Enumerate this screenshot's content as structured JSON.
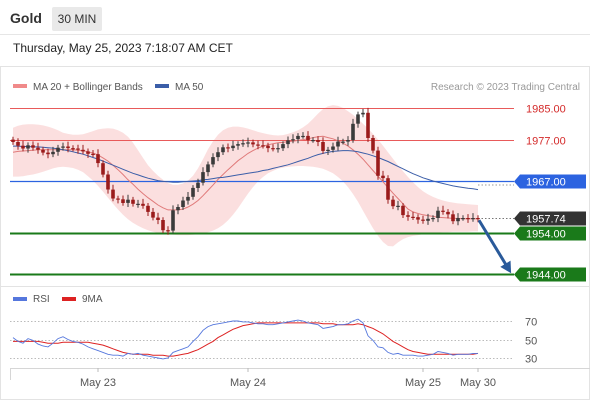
{
  "header": {
    "instrument": "Gold",
    "timeframe": "30 MIN",
    "datetime": "Thursday, May 25, 2023 7:18:07 AM CET"
  },
  "colors": {
    "bull": "#3a3a3a",
    "bear": "#9a1b1b",
    "bollinger_fill": "#f9c9c9",
    "ma20": "#e07a7a",
    "ma50": "#3b5ea8",
    "resistance": "#e85a5a",
    "pivot": "#2c63e0",
    "support": "#1a7a1a",
    "current": "#333333",
    "arrow": "#2a5a9a",
    "rsi": "#5577dd",
    "rsi_ma": "#dd2222"
  },
  "chart_data": [
    {
      "type": "candlestick",
      "legend": [
        {
          "label": "MA 20 + Bollinger Bands",
          "color": "#f08a8a"
        },
        {
          "label": "MA 50",
          "color": "#3b5ea8"
        }
      ],
      "legend_placement": "top-left",
      "watermark": "Research © 2023 Trading Central",
      "ylim": [
        1940,
        1990
      ],
      "levels": [
        {
          "label": "1985.00",
          "value": 1985.0,
          "role": "resistance"
        },
        {
          "label": "1977.00",
          "value": 1977.0,
          "role": "resistance"
        },
        {
          "label": "1967.00",
          "value": 1967.0,
          "role": "pivot"
        },
        {
          "label": "1957.74",
          "value": 1957.74,
          "role": "current"
        },
        {
          "label": "1954.00",
          "value": 1954.0,
          "role": "support"
        },
        {
          "label": "1944.00",
          "value": 1944.0,
          "role": "support"
        }
      ],
      "close": [
        1976.5,
        1975.6,
        1974.9,
        1975.7,
        1975.1,
        1974.6,
        1973.9,
        1973.5,
        1974.1,
        1975.1,
        1975.4,
        1975.0,
        1974.9,
        1974.6,
        1974.2,
        1973.6,
        1973.5,
        1971.3,
        1968.5,
        1964.8,
        1962.6,
        1962.4,
        1961.5,
        1962.3,
        1961.3,
        1961.3,
        1960.8,
        1959.3,
        1957.9,
        1957.3,
        1954.8,
        1954.7,
        1959.7,
        1960.5,
        1962.1,
        1963.0,
        1965.2,
        1966.5,
        1969.1,
        1971.0,
        1972.8,
        1974.0,
        1975.2,
        1975.0,
        1975.6,
        1976.0,
        1976.2,
        1976.4,
        1975.9,
        1975.7,
        1975.6,
        1975.0,
        1974.9,
        1975.0,
        1976.0,
        1976.9,
        1977.2,
        1978.0,
        1978.0,
        1977.0,
        1977.0,
        1976.5,
        1974.3,
        1974.6,
        1975.4,
        1976.6,
        1976.6,
        1977.0,
        1981.0,
        1983.3,
        1983.7,
        1977.5,
        1974.4,
        1968.2,
        1967.6,
        1962.3,
        1960.7,
        1960.8,
        1958.5,
        1958.1,
        1958.0,
        1957.4,
        1957.1,
        1957.6,
        1957.8,
        1959.6,
        1959.3,
        1958.7,
        1957.0,
        1957.8,
        1957.8,
        1957.6,
        1957.8,
        1957.74
      ],
      "ma20": [
        1974.0,
        1974.2,
        1974.3,
        1974.4,
        1974.5,
        1974.6,
        1974.6,
        1974.6,
        1974.6,
        1974.6,
        1974.6,
        1974.6,
        1974.6,
        1974.5,
        1974.4,
        1974.1,
        1973.8,
        1973.3,
        1972.6,
        1971.8,
        1970.8,
        1969.7,
        1968.5,
        1967.2,
        1966.1,
        1964.9,
        1963.8,
        1962.8,
        1961.9,
        1961.0,
        1960.3,
        1959.8,
        1959.8,
        1959.8,
        1960.0,
        1960.5,
        1961.2,
        1962.1,
        1963.3,
        1964.6,
        1965.9,
        1967.3,
        1968.5,
        1969.7,
        1970.8,
        1971.9,
        1972.8,
        1973.7,
        1974.4,
        1975.0,
        1975.5,
        1975.8,
        1976.1,
        1976.3,
        1976.4,
        1976.6,
        1976.7,
        1976.9,
        1977.1,
        1977.3,
        1977.6,
        1977.8,
        1977.9,
        1977.6,
        1977.3,
        1976.8,
        1976.2,
        1975.5,
        1974.6,
        1973.5,
        1972.3,
        1970.9,
        1969.5,
        1968.1,
        1966.7,
        1965.3,
        1963.9,
        1962.6,
        1961.3,
        1960.0,
        1959.3,
        1958.9,
        1958.6,
        1958.4,
        1958.2,
        1958.0,
        1957.9,
        1957.8,
        1957.7,
        1957.7,
        1957.6,
        1957.6,
        1957.6,
        1957.6
      ],
      "ma50": [
        1975.5,
        1975.5,
        1975.4,
        1975.4,
        1975.3,
        1975.3,
        1975.2,
        1975.1,
        1975.0,
        1974.8,
        1974.6,
        1974.4,
        1974.1,
        1973.8,
        1973.5,
        1973.1,
        1972.7,
        1972.3,
        1971.8,
        1971.3,
        1970.8,
        1970.3,
        1969.8,
        1969.3,
        1968.8,
        1968.4,
        1968.0,
        1967.6,
        1967.3,
        1967.0,
        1966.8,
        1966.7,
        1966.6,
        1966.6,
        1966.7,
        1966.8,
        1966.9,
        1967.0,
        1967.2,
        1967.3,
        1967.5,
        1967.7,
        1967.8,
        1968.0,
        1968.2,
        1968.4,
        1968.6,
        1968.8,
        1969.0,
        1969.2,
        1969.5,
        1969.7,
        1970.0,
        1970.3,
        1970.6,
        1970.9,
        1971.3,
        1971.7,
        1972.1,
        1972.5,
        1973.0,
        1973.4,
        1973.7,
        1974.0,
        1974.2,
        1974.3,
        1974.4,
        1974.4,
        1974.3,
        1974.1,
        1973.8,
        1973.5,
        1973.1,
        1972.7,
        1972.2,
        1971.7,
        1971.1,
        1970.5,
        1969.9,
        1969.3,
        1968.7,
        1968.2,
        1967.7,
        1967.3,
        1966.9,
        1966.6,
        1966.3,
        1966.0,
        1965.7,
        1965.5,
        1965.3,
        1965.1,
        1965.0,
        1964.8
      ],
      "bollinger_upper": [
        1980.0,
        1980.5,
        1980.8,
        1980.9,
        1980.9,
        1980.8,
        1980.6,
        1980.3,
        1979.9,
        1979.4,
        1978.8,
        1978.5,
        1978.3,
        1978.3,
        1978.4,
        1978.8,
        1979.2,
        1979.6,
        1979.8,
        1979.9,
        1979.8,
        1979.4,
        1978.8,
        1977.8,
        1976.3,
        1974.5,
        1972.6,
        1970.8,
        1969.4,
        1968.2,
        1967.2,
        1966.4,
        1966.0,
        1966.0,
        1966.3,
        1967.0,
        1968.2,
        1970.0,
        1972.3,
        1974.7,
        1976.7,
        1978.3,
        1979.4,
        1980.0,
        1980.3,
        1980.3,
        1980.1,
        1979.8,
        1979.4,
        1979.0,
        1978.7,
        1978.4,
        1978.2,
        1978.1,
        1978.2,
        1978.5,
        1978.9,
        1979.4,
        1980.1,
        1981.0,
        1982.2,
        1983.5,
        1984.6,
        1985.3,
        1985.6,
        1985.4,
        1984.9,
        1984.1,
        1983.2,
        1982.1,
        1981.0,
        1979.8,
        1978.5,
        1977.1,
        1975.6,
        1974.0,
        1972.4,
        1970.8,
        1969.3,
        1967.9,
        1966.6,
        1965.4,
        1964.4,
        1963.6,
        1963.0,
        1962.5,
        1962.1,
        1961.8,
        1961.6,
        1961.4,
        1961.3,
        1961.2,
        1961.1,
        1961.0
      ],
      "bollinger_lower": [
        1968.0,
        1968.0,
        1968.1,
        1968.3,
        1968.5,
        1968.8,
        1969.2,
        1969.6,
        1970.0,
        1970.3,
        1970.4,
        1970.3,
        1970.1,
        1969.7,
        1969.1,
        1968.1,
        1967.0,
        1965.7,
        1964.3,
        1962.8,
        1961.3,
        1959.9,
        1958.6,
        1957.5,
        1956.6,
        1955.9,
        1955.3,
        1954.8,
        1954.4,
        1954.1,
        1953.9,
        1953.8,
        1953.7,
        1953.6,
        1953.6,
        1953.6,
        1953.7,
        1953.8,
        1954.0,
        1954.3,
        1954.7,
        1955.3,
        1956.1,
        1957.2,
        1958.6,
        1960.2,
        1962.0,
        1963.8,
        1965.4,
        1966.8,
        1967.9,
        1968.8,
        1969.4,
        1969.9,
        1970.2,
        1970.4,
        1970.5,
        1970.6,
        1970.6,
        1970.5,
        1970.4,
        1970.2,
        1969.9,
        1969.4,
        1968.8,
        1967.9,
        1966.8,
        1965.4,
        1963.7,
        1961.8,
        1959.6,
        1957.4,
        1955.3,
        1953.4,
        1951.9,
        1950.9,
        1950.8,
        1951.8,
        1952.6,
        1953.1,
        1953.4,
        1953.6,
        1953.8,
        1954.0,
        1954.1,
        1954.2,
        1954.3,
        1954.3,
        1954.4,
        1954.4,
        1954.4,
        1954.4,
        1954.5,
        1954.5
      ],
      "x_tick_labels": [
        "May 23",
        "May 24",
        "May 25",
        "May 30"
      ],
      "x_tick_bars": [
        17,
        47,
        82,
        93
      ]
    },
    {
      "type": "line",
      "title": "",
      "legend": [
        {
          "label": "RSI",
          "color": "#5577dd"
        },
        {
          "label": "9MA",
          "color": "#dd2222"
        }
      ],
      "legend_placement": "top-left",
      "ylim": [
        20,
        80
      ],
      "yticks": [
        {
          "value": 70,
          "label": "70"
        },
        {
          "value": 50,
          "label": "50"
        },
        {
          "value": 30,
          "label": "30"
        }
      ],
      "series": [
        {
          "name": "RSI",
          "values": [
            52,
            48,
            46,
            51,
            49,
            45,
            43,
            42,
            46,
            51,
            53,
            50,
            48,
            47,
            45,
            42,
            40,
            38,
            36,
            34,
            33,
            33,
            32,
            35,
            34,
            35,
            33,
            32,
            31,
            30,
            29,
            30,
            36,
            38,
            40,
            42,
            48,
            53,
            60,
            64,
            66,
            67,
            68,
            69,
            70,
            70,
            69,
            69,
            68,
            67,
            67,
            66,
            66,
            67,
            68,
            69,
            70,
            71,
            70,
            68,
            67,
            66,
            62,
            63,
            64,
            66,
            66,
            67,
            70,
            72,
            68,
            54,
            49,
            42,
            41,
            36,
            34,
            35,
            33,
            33,
            33,
            32,
            32,
            33,
            34,
            37,
            36,
            35,
            33,
            34,
            34,
            34,
            35,
            35
          ]
        },
        {
          "name": "9MA",
          "values": [
            48,
            48,
            48,
            48,
            48,
            48,
            47,
            46,
            46,
            46,
            47,
            47,
            47,
            47,
            47,
            47,
            46,
            45,
            44,
            42,
            40,
            38,
            36,
            35,
            34,
            34,
            34,
            34,
            33,
            33,
            33,
            32,
            32,
            33,
            34,
            35,
            37,
            39,
            42,
            45,
            48,
            52,
            55,
            58,
            61,
            63,
            65,
            66,
            67,
            68,
            68,
            68,
            68,
            68,
            68,
            68,
            68,
            68,
            68,
            68,
            68,
            68,
            67,
            67,
            67,
            66,
            66,
            66,
            66,
            67,
            66,
            64,
            62,
            59,
            56,
            52,
            48,
            45,
            42,
            39,
            37,
            36,
            35,
            34,
            34,
            34,
            34,
            34,
            34,
            34,
            34,
            34,
            34,
            35
          ]
        }
      ]
    }
  ]
}
